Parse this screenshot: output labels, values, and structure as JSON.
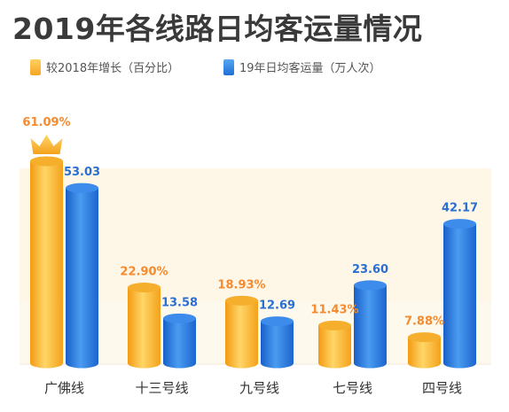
{
  "chart_data": {
    "type": "bar",
    "title": "2019年各线路日均客运量情况",
    "categories": [
      "广佛线",
      "十三号线",
      "九号线",
      "七号线",
      "四号线"
    ],
    "series": [
      {
        "name": "较2018年增长（百分比）",
        "values": [
          61.09,
          22.9,
          18.93,
          11.43,
          7.88
        ],
        "labels": [
          "61.09%",
          "22.90%",
          "18.93%",
          "11.43%",
          "7.88%"
        ],
        "color": "#F7B731"
      },
      {
        "name": "19年日均客运量（万人次）",
        "values": [
          53.03,
          13.58,
          12.69,
          23.6,
          42.17
        ],
        "labels": [
          "53.03",
          "13.58",
          "12.69",
          "23.60",
          "42.17"
        ],
        "color": "#2D7FE0"
      }
    ],
    "highlight": {
      "category_index": 0,
      "icon": "crown-icon"
    },
    "colors": {
      "growth_label": "#F58A2E",
      "volume_label": "#2A6FD1",
      "band": "#FEF6E6",
      "title": "#3A3A3A"
    }
  }
}
